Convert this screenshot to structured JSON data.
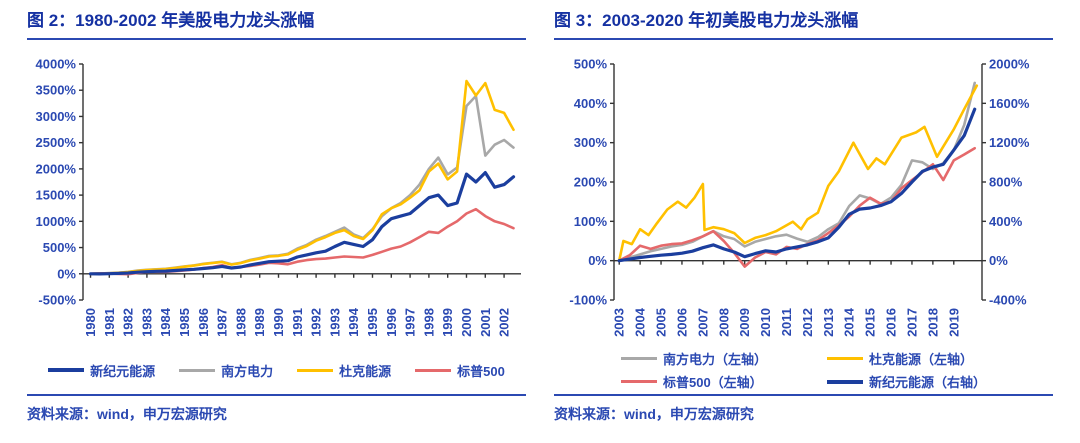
{
  "colors": {
    "title_text": "#1531A2",
    "axis_text": "#2B49B2",
    "rule": "#2B49B2",
    "axis_line": "#333333",
    "navy": "#1B3E9E",
    "gray": "#A8A8A8",
    "yellow": "#FFC000",
    "red": "#E5696B"
  },
  "figures": [
    {
      "title": "图 2：1980-2002 年美股电力龙头涨幅",
      "source": "资料来源：wind，申万宏源研究",
      "legend": [
        {
          "label": "新纪元能源",
          "color": "#1B3E9E",
          "thick": true
        },
        {
          "label": "南方电力",
          "color": "#A8A8A8"
        },
        {
          "label": "杜克能源",
          "color": "#FFC000"
        },
        {
          "label": "标普500",
          "color": "#E5696B"
        }
      ]
    },
    {
      "title": "图 3：2003-2020 年初美股电力龙头涨幅",
      "source": "资料来源：wind，申万宏源研究",
      "legend": [
        {
          "label": "南方电力（左轴）",
          "color": "#A8A8A8"
        },
        {
          "label": "杜克能源（左轴）",
          "color": "#FFC000"
        },
        {
          "label": "标普500（左轴）",
          "color": "#E5696B"
        },
        {
          "label": "新纪元能源（右轴）",
          "color": "#1B3E9E",
          "thick": true
        }
      ]
    }
  ],
  "chart_data": [
    {
      "type": "line",
      "title": "1980-2002 年美股电力龙头涨幅",
      "grid": false,
      "legend_position": "bottom",
      "x_range": [
        1979.6,
        2002.9
      ],
      "x_tick_start": 1980,
      "x_ticks": [
        "1980",
        "1981",
        "1982",
        "1983",
        "1984",
        "1985",
        "1986",
        "1987",
        "1988",
        "1989",
        "1990",
        "1991",
        "1992",
        "1993",
        "1994",
        "1995",
        "1996",
        "1997",
        "1998",
        "1999",
        "2000",
        "2001",
        "2002"
      ],
      "x_start": 1980,
      "x_step": 0.5,
      "y_axis": {
        "min": -500,
        "max": 4000,
        "step": 500,
        "format": "percent"
      },
      "series": [
        {
          "name": "南方电力",
          "color": "#A8A8A8",
          "width": 2.6,
          "axis": "left",
          "values": [
            0,
            5,
            12,
            20,
            35,
            60,
            75,
            85,
            95,
            115,
            140,
            160,
            190,
            210,
            230,
            180,
            210,
            265,
            300,
            340,
            350,
            380,
            480,
            550,
            650,
            720,
            800,
            880,
            750,
            680,
            850,
            1100,
            1250,
            1350,
            1500,
            1700,
            2000,
            2216,
            1894,
            2026,
            3200,
            3390,
            2254,
            2462,
            2550,
            2405
          ]
        },
        {
          "name": "杜克能源",
          "color": "#FFC000",
          "width": 2.6,
          "axis": "left",
          "values": [
            0,
            4,
            10,
            18,
            32,
            55,
            70,
            80,
            90,
            110,
            135,
            155,
            185,
            205,
            225,
            175,
            205,
            255,
            290,
            330,
            340,
            370,
            460,
            530,
            630,
            700,
            780,
            833,
            720,
            663,
            830,
            1136,
            1250,
            1325,
            1450,
            1591,
            1950,
            2100,
            1800,
            1950,
            3674,
            3400,
            3636,
            3125,
            3068,
            2746
          ]
        },
        {
          "name": "标普500",
          "color": "#E5696B",
          "width": 2.6,
          "axis": "left",
          "values": [
            0,
            8,
            5,
            -5,
            -8,
            15,
            35,
            40,
            38,
            50,
            65,
            80,
            110,
            130,
            165,
            110,
            130,
            150,
            175,
            210,
            200,
            180,
            230,
            260,
            280,
            290,
            310,
            330,
            320,
            310,
            360,
            420,
            480,
            520,
            600,
            700,
            800,
            780,
            900,
            1000,
            1150,
            1231,
            1100,
            1000,
            950,
            870
          ]
        },
        {
          "name": "新纪元能源",
          "color": "#1B3E9E",
          "width": 3.2,
          "axis": "left",
          "values": [
            0,
            -3,
            2,
            8,
            15,
            30,
            40,
            48,
            52,
            62,
            75,
            85,
            100,
            115,
            140,
            110,
            130,
            170,
            200,
            230,
            240,
            250,
            320,
            360,
            400,
            430,
            520,
            600,
            560,
            520,
            650,
            900,
            1050,
            1100,
            1150,
            1300,
            1450,
            1500,
            1300,
            1350,
            1900,
            1750,
            1930,
            1650,
            1700,
            1850
          ]
        }
      ]
    },
    {
      "type": "line",
      "title": "2003-2020 年初美股电力龙头涨幅",
      "grid": false,
      "legend_position": "bottom",
      "x_range": [
        2002.75,
        2020.35
      ],
      "x_tick_start": 2003,
      "x_ticks": [
        "2003",
        "2004",
        "2005",
        "2006",
        "2007",
        "2008",
        "2009",
        "2010",
        "2011",
        "2012",
        "2013",
        "2014",
        "2015",
        "2016",
        "2017",
        "2018",
        "2019"
      ],
      "x_start": 2003,
      "x_step": 0.5,
      "y_axis": {
        "min": -100,
        "max": 500,
        "step": 100,
        "format": "percent"
      },
      "y_axis_right": {
        "min": -400,
        "max": 2000,
        "step": 400,
        "format": "percent"
      },
      "series": [
        {
          "name": "南方电力（左轴）",
          "color": "#A8A8A8",
          "width": 2.6,
          "axis": "left",
          "values": [
            0,
            8,
            16,
            24,
            30,
            36,
            40,
            48,
            62,
            75,
            62,
            55,
            36,
            48,
            55,
            62,
            66,
            56,
            48,
            60,
            80,
            95,
            139,
            166,
            158,
            144,
            160,
            193,
            255,
            250,
            233,
            248,
            281,
            345,
            452
          ]
        },
        {
          "name": "杜克能源（左轴）",
          "color": "#FFC000",
          "width": 2.6,
          "axis": "left",
          "x": [
            2003,
            2003.2,
            2003.6,
            2004,
            2004.4,
            2004.8,
            2005.3,
            2005.8,
            2006.2,
            2006.6,
            2007,
            2007.08,
            2007.5,
            2008,
            2008.5,
            2009,
            2009.5,
            2010,
            2010.5,
            2011.3,
            2011.7,
            2012,
            2012.5,
            2013,
            2013.5,
            2014.2,
            2014.9,
            2015.3,
            2015.7,
            2016.5,
            2017.2,
            2017.6,
            2018.2,
            2019,
            2019.5,
            2020.1
          ],
          "values": [
            0,
            50,
            42,
            80,
            65,
            95,
            130,
            150,
            135,
            160,
            195,
            78,
            85,
            80,
            70,
            45,
            58,
            65,
            75,
            99,
            80,
            105,
            122,
            190,
            227,
            300,
            233,
            260,
            245,
            313,
            326,
            340,
            264,
            334,
            385,
            445
          ]
        },
        {
          "name": "标普500（左轴）",
          "color": "#E5696B",
          "width": 2.6,
          "axis": "left",
          "values": [
            0,
            14,
            38,
            30,
            38,
            42,
            44,
            52,
            62,
            75,
            50,
            20,
            -15,
            8,
            22,
            16,
            35,
            30,
            42,
            52,
            70,
            90,
            112,
            140,
            160,
            145,
            150,
            184,
            205,
            225,
            245,
            205,
            255,
            270,
            286
          ]
        },
        {
          "name": "新纪元能源（右轴）",
          "color": "#1B3E9E",
          "width": 3.2,
          "axis": "right",
          "values": [
            0,
            16,
            32,
            44,
            56,
            64,
            76,
            96,
            132,
            160,
            120,
            88,
            40,
            72,
            100,
            88,
            120,
            140,
            160,
            192,
            232,
            340,
            472,
            524,
            536,
            560,
            600,
            684,
            800,
            908,
            952,
            980,
            1124,
            1272,
            1540
          ]
        }
      ]
    }
  ]
}
